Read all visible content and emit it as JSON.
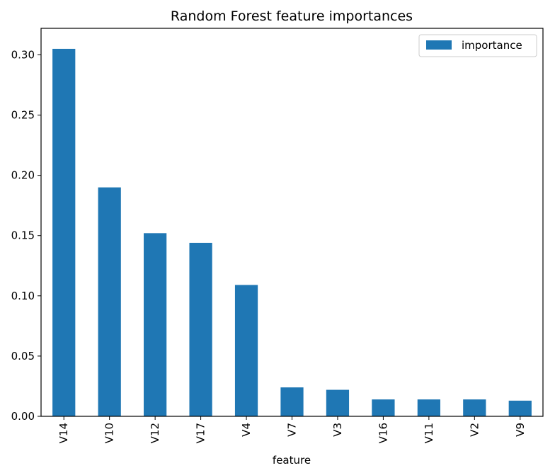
{
  "chart_data": {
    "type": "bar",
    "title": "Random Forest feature importances",
    "xlabel": "feature",
    "ylabel": "",
    "categories": [
      "V14",
      "V10",
      "V12",
      "V17",
      "V4",
      "V7",
      "V3",
      "V16",
      "V11",
      "V2",
      "V9"
    ],
    "series": [
      {
        "name": "importance",
        "values": [
          0.305,
          0.19,
          0.152,
          0.144,
          0.109,
          0.024,
          0.022,
          0.014,
          0.014,
          0.014,
          0.013
        ],
        "color": "#1f77b4"
      }
    ],
    "ylim": [
      0,
      0.322
    ],
    "yticks": [
      "0.00",
      "0.05",
      "0.10",
      "0.15",
      "0.20",
      "0.25",
      "0.30"
    ],
    "grid": false,
    "legend_position": "top-right"
  }
}
